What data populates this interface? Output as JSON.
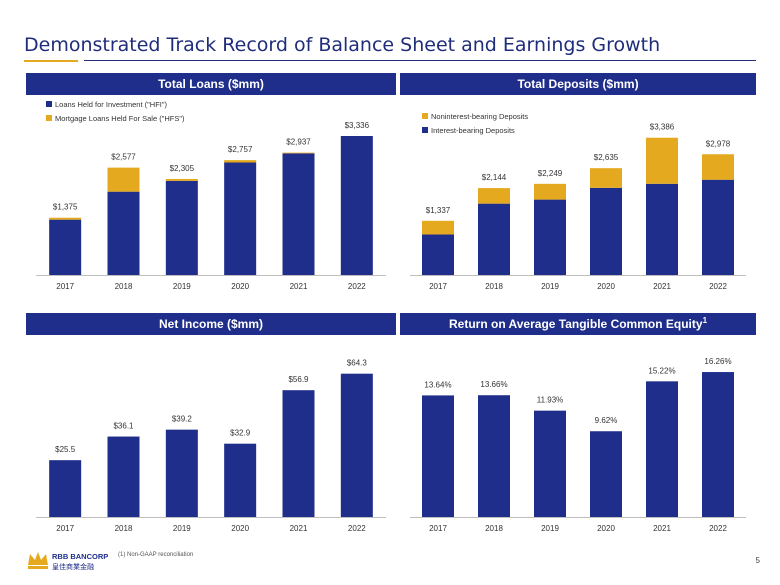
{
  "page": {
    "title": "Demonstrated Track Record of Balance Sheet and Earnings Growth",
    "page_number": "5",
    "footnote": "(1) Non-GAAP reconciliation",
    "logo": {
      "name": "RBB BANCORP",
      "chinese": "皇佳商業金融"
    }
  },
  "colors": {
    "navy": "#1f2e8a",
    "gold": "#e4a91e",
    "axis": "#bfbfbf",
    "text": "#333333"
  },
  "chart_data": [
    {
      "id": "loans",
      "type": "bar",
      "stacked": true,
      "header": "Total Loans ($mm)",
      "header_sup": "",
      "title": "",
      "categories": [
        "2017",
        "2018",
        "2019",
        "2020",
        "2021",
        "2022"
      ],
      "series": [
        {
          "name": "Loans Held for Investment (\"HFI\")",
          "color": "#1f2e8a",
          "values": [
            1328,
            2000,
            2260,
            2700,
            2920,
            3336
          ]
        },
        {
          "name": "Mortgage Loans Held For Sale (\"HFS\")",
          "color": "#e4a91e",
          "values": [
            47,
            577,
            45,
            57,
            17,
            0
          ]
        }
      ],
      "totals": [
        1375,
        2577,
        2305,
        2757,
        2937,
        3336
      ],
      "total_labels": [
        "$1,375",
        "$2,577",
        "$2,305",
        "$2,757",
        "$2,937",
        "$3,336"
      ],
      "ylim": [
        0,
        3600
      ],
      "legend": "top-left",
      "grid": false
    },
    {
      "id": "deposits",
      "type": "bar",
      "stacked": true,
      "header": "Total Deposits ($mm)",
      "header_sup": "",
      "title": "",
      "categories": [
        "2017",
        "2018",
        "2019",
        "2020",
        "2021",
        "2022"
      ],
      "series": [
        {
          "name": "Interest-bearing Deposits",
          "color": "#1f2e8a",
          "values": [
            1000,
            1760,
            1860,
            2150,
            2250,
            2350
          ]
        },
        {
          "name": "Noninterest-bearing Deposits",
          "color": "#e4a91e",
          "values": [
            337,
            384,
            389,
            485,
            1136,
            628
          ]
        }
      ],
      "totals": [
        1337,
        2144,
        2249,
        2635,
        3386,
        2978
      ],
      "total_labels": [
        "$1,337",
        "$2,144",
        "$2,249",
        "$2,635",
        "$3,386",
        "$2,978"
      ],
      "ylim": [
        0,
        3700
      ],
      "legend": "top-left",
      "legend_order": [
        1,
        0
      ],
      "grid": false
    },
    {
      "id": "netincome",
      "type": "bar",
      "stacked": false,
      "header": "Net Income ($mm)",
      "header_sup": "",
      "title": "",
      "categories": [
        "2017",
        "2018",
        "2019",
        "2020",
        "2021",
        "2022"
      ],
      "series": [
        {
          "name": "",
          "color": "#1f2e8a",
          "values": [
            25.5,
            36.1,
            39.2,
            32.9,
            56.9,
            64.3
          ]
        }
      ],
      "totals": [
        25.5,
        36.1,
        39.2,
        32.9,
        56.9,
        64.3
      ],
      "total_labels": [
        "$25.5",
        "$36.1",
        "$39.2",
        "$32.9",
        "$56.9",
        "$64.3"
      ],
      "ylim": [
        0,
        70
      ],
      "legend": "none",
      "grid": false
    },
    {
      "id": "rotce",
      "type": "bar",
      "stacked": false,
      "header": "Return on Average Tangible Common Equity",
      "header_sup": "1",
      "title": "",
      "categories": [
        "2017",
        "2018",
        "2019",
        "2020",
        "2021",
        "2022"
      ],
      "series": [
        {
          "name": "",
          "color": "#1f2e8a",
          "values": [
            13.64,
            13.66,
            11.93,
            9.62,
            15.22,
            16.26
          ]
        }
      ],
      "totals": [
        13.64,
        13.66,
        11.93,
        9.62,
        15.22,
        16.26
      ],
      "total_labels": [
        "13.64%",
        "13.66%",
        "11.93%",
        "9.62%",
        "15.22%",
        "16.26%"
      ],
      "ylim": [
        0,
        17.5
      ],
      "legend": "none",
      "grid": false
    }
  ]
}
